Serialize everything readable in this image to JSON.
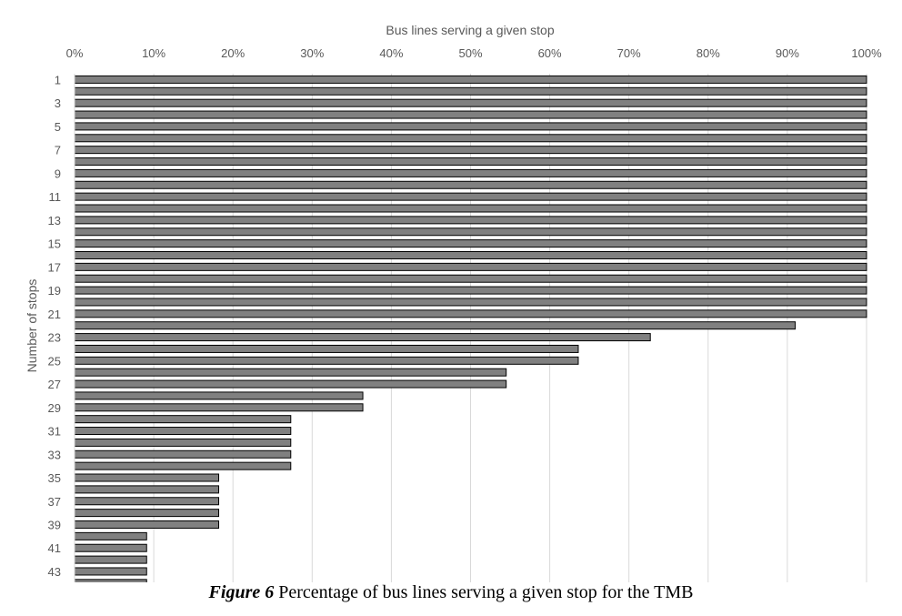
{
  "chart_data": {
    "type": "bar",
    "orientation": "horizontal",
    "xlabel": "Bus lines serving a given stop",
    "ylabel": "Number of stops",
    "xlim": [
      0,
      100
    ],
    "xticks": [
      "0%",
      "10%",
      "20%",
      "30%",
      "40%",
      "50%",
      "60%",
      "70%",
      "80%",
      "90%",
      "100%"
    ],
    "x_axis_position": "top",
    "grid": "vertical",
    "bar_color": "#808080",
    "bar_edge_color": "#000000",
    "category_labels_shown": [
      "1",
      "3",
      "5",
      "7",
      "9",
      "11",
      "13",
      "15",
      "17",
      "19",
      "21",
      "23",
      "25",
      "27",
      "29",
      "31",
      "33",
      "35",
      "37",
      "39",
      "41",
      "43"
    ],
    "values": [
      100,
      100,
      100,
      100,
      100,
      100,
      100,
      100,
      100,
      100,
      100,
      100,
      100,
      100,
      100,
      100,
      100,
      100,
      100,
      100,
      100,
      91,
      72.7,
      63.6,
      63.6,
      54.5,
      54.5,
      36.4,
      36.4,
      27.3,
      27.3,
      27.3,
      27.3,
      27.3,
      18.2,
      18.2,
      18.2,
      18.2,
      18.2,
      9.1,
      9.1,
      9.1,
      9.1,
      9.1
    ]
  },
  "caption": {
    "label": "Figure 6",
    "text": " Percentage of bus lines serving a given stop for the TMB"
  }
}
